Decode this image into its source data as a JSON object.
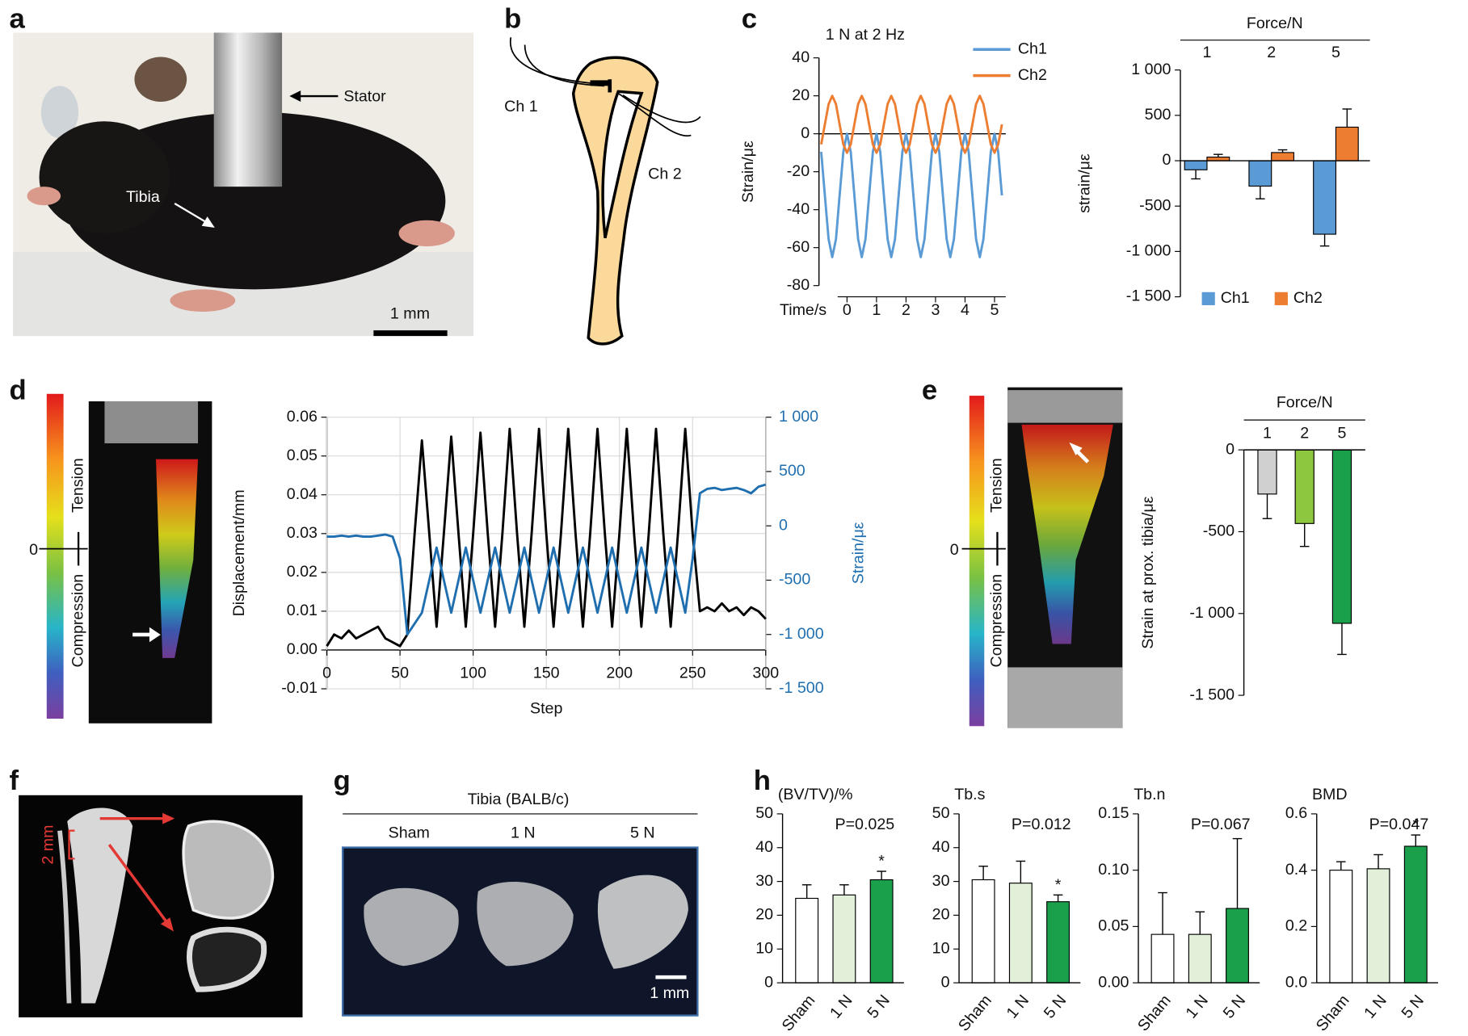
{
  "panel_labels": [
    "a",
    "b",
    "c",
    "d",
    "e",
    "f",
    "g",
    "h"
  ],
  "photo_a": {
    "stator": "Stator",
    "tibia": "Tibia",
    "scale": "1 mm"
  },
  "diagram_b": {
    "ch1": "Ch 1",
    "ch2": "Ch 2"
  },
  "colorbar": {
    "tension": "Tension",
    "compression": "Compression",
    "zero": "0"
  },
  "image_f": {
    "scale": "2 mm"
  },
  "image_g": {
    "title": "Tibia (BALB/c)",
    "groups": [
      "Sham",
      "1 N",
      "5 N"
    ],
    "scale": "1 mm"
  },
  "chart_data": [
    {
      "type": "line",
      "title": "1 N at 2 Hz",
      "xlabel": "Time/s",
      "ylabel": "Strain/με",
      "x": [
        -0.875,
        -0.75,
        -0.625,
        -0.5,
        -0.375,
        -0.25,
        -0.125,
        0,
        0.125,
        0.25,
        0.375,
        0.5,
        0.625,
        0.75,
        0.875,
        1,
        1.125,
        1.25,
        1.375,
        1.5,
        1.625,
        1.75,
        1.875,
        2,
        2.125,
        2.25,
        2.375,
        2.5,
        2.625,
        2.75,
        2.875,
        3,
        3.125,
        3.25,
        3.375,
        3.5,
        3.625,
        3.75,
        3.875,
        4,
        4.125,
        4.25,
        4.375,
        4.5,
        4.625,
        4.75,
        4.875,
        5,
        5.125,
        5.25
      ],
      "series": [
        {
          "name": "Ch1",
          "color": "#5b9bd5",
          "values": [
            -9.5,
            -32.5,
            -55.5,
            -65,
            -55.5,
            -32.5,
            -9.5,
            0,
            -9.5,
            -32.5,
            -55.5,
            -65,
            -55.5,
            -32.5,
            -9.5,
            0,
            -9.5,
            -32.5,
            -55.5,
            -65,
            -55.5,
            -32.5,
            -9.5,
            0,
            -9.5,
            -32.5,
            -55.5,
            -65,
            -55.5,
            -32.5,
            -9.5,
            0,
            -9.5,
            -32.5,
            -55.5,
            -65,
            -55.5,
            -32.5,
            -9.5,
            0,
            -9.5,
            -32.5,
            -55.5,
            -65,
            -55.5,
            -32.5,
            -9.5,
            0,
            -9.5,
            -32.5
          ]
        },
        {
          "name": "Ch2",
          "color": "#ed7d31",
          "values": [
            -5.6,
            5,
            15.6,
            20,
            15.6,
            5,
            -5.6,
            -10,
            -5.6,
            5,
            15.6,
            20,
            15.6,
            5,
            -5.6,
            -10,
            -5.6,
            5,
            15.6,
            20,
            15.6,
            5,
            -5.6,
            -10,
            -5.6,
            5,
            15.6,
            20,
            15.6,
            5,
            -5.6,
            -10,
            -5.6,
            5,
            15.6,
            20,
            15.6,
            5,
            -5.6,
            -10,
            -5.6,
            5,
            15.6,
            20,
            15.6,
            5,
            -5.6,
            -10,
            -5.6,
            5
          ]
        }
      ],
      "xlim": [
        -0.95,
        5.38
      ],
      "xticks": [
        0,
        1,
        2,
        3,
        4,
        5
      ],
      "ylim": [
        -80,
        40
      ],
      "yticks": [
        -80,
        -60,
        -40,
        -20,
        0,
        20,
        40
      ],
      "zero_line": true,
      "legend": "upper right"
    },
    {
      "type": "bar",
      "title": "Force/N",
      "ylabel": "strain/με",
      "categories": [
        "1",
        "2",
        "5"
      ],
      "series": [
        {
          "name": "Ch1",
          "color": "#5b9bd5",
          "values": [
            -100,
            -280,
            -810
          ],
          "errors": [
            100,
            140,
            130
          ]
        },
        {
          "name": "Ch2",
          "color": "#ed7d31",
          "values": [
            40,
            90,
            370
          ],
          "errors": [
            30,
            30,
            200
          ]
        }
      ],
      "ylim": [
        -1500,
        1000
      ],
      "yticks": [
        {
          "value": -1500,
          "label": "-1 500"
        },
        {
          "value": -1000,
          "label": "-1 000"
        },
        -500,
        0,
        500,
        {
          "value": 1000,
          "label": "1 000"
        }
      ],
      "legend": "lower center"
    },
    {
      "type": "line",
      "xlabel": "Step",
      "ylabel": "Displacement/mm",
      "y2label": "Strain/με",
      "x": [
        0,
        5,
        10,
        15,
        20,
        25,
        30,
        35,
        40,
        45,
        50,
        55,
        60,
        65,
        70,
        75,
        80,
        85,
        90,
        95,
        100,
        105,
        110,
        115,
        120,
        125,
        130,
        135,
        140,
        145,
        150,
        155,
        160,
        165,
        170,
        175,
        180,
        185,
        190,
        195,
        200,
        205,
        210,
        215,
        220,
        225,
        230,
        235,
        240,
        245,
        250,
        255,
        260,
        265,
        270,
        275,
        280,
        285,
        290,
        295,
        300
      ],
      "series": [
        {
          "name": "Displacement",
          "color": "#000000",
          "values": [
            0.001,
            0.004,
            0.003,
            0.005,
            0.003,
            0.004,
            0.005,
            0.006,
            0.003,
            0.002,
            0.001,
            0.004,
            0.03,
            0.054,
            0.03,
            0.006,
            0.03,
            0.055,
            0.03,
            0.006,
            0.03,
            0.056,
            0.03,
            0.006,
            0.03,
            0.057,
            0.03,
            0.006,
            0.03,
            0.057,
            0.03,
            0.006,
            0.03,
            0.057,
            0.03,
            0.006,
            0.03,
            0.057,
            0.03,
            0.006,
            0.03,
            0.057,
            0.03,
            0.006,
            0.03,
            0.057,
            0.03,
            0.006,
            0.03,
            0.057,
            0.03,
            0.01,
            0.011,
            0.01,
            0.012,
            0.01,
            0.011,
            0.009,
            0.011,
            0.01,
            0.008
          ]
        },
        {
          "name": "Strain",
          "color": "#1f6fb0",
          "axis": "y2",
          "values": [
            -100,
            -100,
            -90,
            -100,
            -90,
            -100,
            -100,
            -90,
            -80,
            -100,
            -300,
            -1000,
            -900,
            -800,
            -500,
            -200,
            -500,
            -800,
            -500,
            -200,
            -500,
            -800,
            -500,
            -200,
            -500,
            -800,
            -500,
            -200,
            -500,
            -800,
            -500,
            -200,
            -500,
            -800,
            -500,
            -200,
            -500,
            -800,
            -500,
            -200,
            -500,
            -800,
            -500,
            -200,
            -500,
            -800,
            -500,
            -200,
            -500,
            -800,
            -300,
            300,
            340,
            350,
            330,
            340,
            350,
            330,
            300,
            360,
            380
          ]
        }
      ],
      "xlim": [
        0,
        300
      ],
      "xticks": [
        0,
        50,
        100,
        150,
        200,
        250,
        300
      ],
      "ylim": [
        -0.01,
        0.06
      ],
      "yticks": [
        -0.01,
        {
          "value": 0,
          "label": "0.00"
        },
        0.01,
        0.02,
        0.03,
        0.04,
        0.05,
        0.06
      ],
      "y2lim": [
        -1500,
        1000
      ],
      "y2ticks": [
        {
          "value": -1500,
          "label": "-1 500"
        },
        {
          "value": -1000,
          "label": "-1 000"
        },
        -500,
        0,
        500,
        {
          "value": 1000,
          "label": "1 000"
        }
      ],
      "grid": true,
      "zero_line": true
    },
    {
      "type": "bar",
      "title": "Force/N",
      "ylabel": "Strain at prox. tibia/με",
      "categories": [
        "1",
        "2",
        "5"
      ],
      "values": [
        -270,
        -450,
        -1060
      ],
      "errors": [
        150,
        140,
        190
      ],
      "colors": [
        "#d0d0d0",
        "#8dc63f",
        "#1aa04a"
      ],
      "ylim": [
        -1500,
        0
      ],
      "yticks": [
        {
          "value": -1500,
          "label": "-1 500"
        },
        {
          "value": -1000,
          "label": "-1 000"
        },
        -500,
        0
      ]
    },
    {
      "type": "bar",
      "title": "(BV/TV)/%",
      "categories": [
        "Sham",
        "1 N",
        "5 N"
      ],
      "values": [
        25,
        26,
        30.5
      ],
      "errors": [
        4,
        3,
        2.5
      ],
      "colors": [
        "#ffffff",
        "#e2f0d9",
        "#1aa04a"
      ],
      "ylim": [
        0,
        50
      ],
      "yticks": [
        0,
        10,
        20,
        30,
        40,
        50
      ],
      "p_value": "P=0.025",
      "significance": "*"
    },
    {
      "type": "bar",
      "title": "Tb.s",
      "categories": [
        "Sham",
        "1 N",
        "5 N"
      ],
      "values": [
        30.5,
        29.5,
        24
      ],
      "errors": [
        4,
        6.5,
        2
      ],
      "colors": [
        "#ffffff",
        "#e2f0d9",
        "#1aa04a"
      ],
      "ylim": [
        0,
        50
      ],
      "yticks": [
        0,
        10,
        20,
        30,
        40,
        50
      ],
      "p_value": "P=0.012",
      "significance": "*"
    },
    {
      "type": "bar",
      "title": "Tb.n",
      "categories": [
        "Sham",
        "1 N",
        "5 N"
      ],
      "values": [
        0.043,
        0.043,
        0.066
      ],
      "errors": [
        0.037,
        0.02,
        0.062
      ],
      "colors": [
        "#ffffff",
        "#e2f0d9",
        "#1aa04a"
      ],
      "ylim": [
        0,
        0.15
      ],
      "yticks": [
        {
          "value": 0,
          "label": "0.00"
        },
        0.05,
        {
          "value": 0.1,
          "label": "0.10"
        },
        0.15
      ],
      "p_value": "P=0.067"
    },
    {
      "type": "bar",
      "title": "BMD",
      "categories": [
        "Sham",
        "1 N",
        "5 N"
      ],
      "values": [
        0.4,
        0.405,
        0.485
      ],
      "errors": [
        0.03,
        0.05,
        0.04
      ],
      "colors": [
        "#ffffff",
        "#e2f0d9",
        "#1aa04a"
      ],
      "ylim": [
        0,
        0.6
      ],
      "yticks": [
        {
          "value": 0,
          "label": "0.0"
        },
        0.2,
        0.4,
        0.6
      ],
      "p_value": "P=0.047",
      "significance": "*"
    }
  ]
}
